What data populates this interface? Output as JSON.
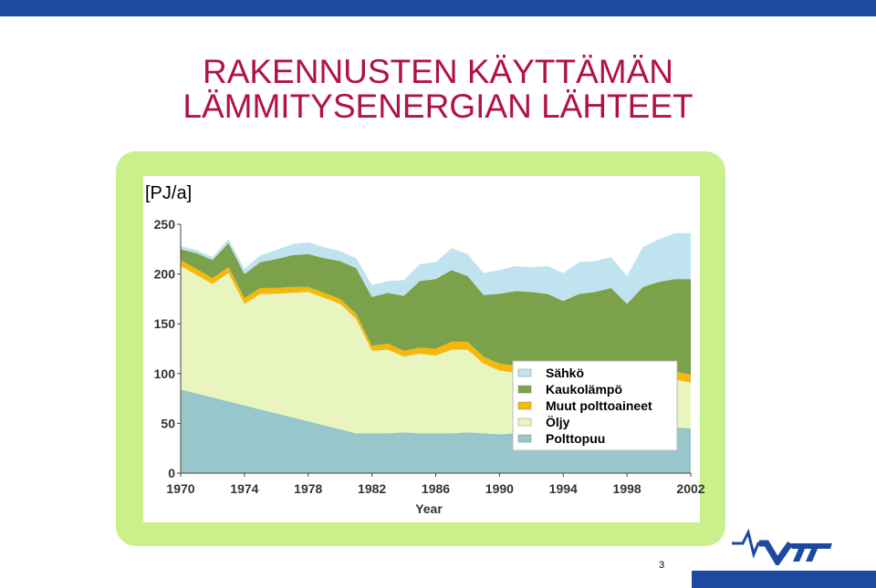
{
  "slide": {
    "title_lines": [
      "RAKENNUSTEN KÄYTTÄMÄN",
      "LÄMMITYSENERGIAN LÄHTEET"
    ],
    "unit": "[PJ/a]",
    "page_number": "3",
    "colors": {
      "title": "#b01248",
      "bar": "#1d4aa0",
      "frame": "#c9f08a",
      "logo": "#1d4aa0"
    },
    "logo_icon": "vtt-logo-icon"
  },
  "chart_data": {
    "type": "area",
    "stacked": true,
    "title": "",
    "xlabel": "Year",
    "ylabel": "",
    "xlim": [
      1970,
      2002
    ],
    "ylim": [
      0,
      250
    ],
    "x_ticks": [
      1970,
      1974,
      1978,
      1982,
      1986,
      1990,
      1994,
      1998,
      2002
    ],
    "y_ticks": [
      0,
      50,
      100,
      150,
      200,
      250
    ],
    "legend_position": "lower-right",
    "grid": false,
    "x": [
      1970,
      1971,
      1972,
      1973,
      1974,
      1975,
      1976,
      1977,
      1978,
      1979,
      1980,
      1981,
      1982,
      1983,
      1984,
      1985,
      1986,
      1987,
      1988,
      1989,
      1990,
      1991,
      1992,
      1993,
      1994,
      1995,
      1996,
      1997,
      1998,
      1999,
      2000,
      2001,
      2002
    ],
    "series": [
      {
        "name": "Polttopuu",
        "color": "#97c7cb",
        "values": [
          84,
          80,
          76,
          72,
          68,
          64,
          60,
          56,
          52,
          48,
          44,
          40,
          40,
          40,
          41,
          40,
          40,
          40,
          41,
          40,
          39,
          40,
          41,
          42,
          42,
          43,
          44,
          45,
          45,
          45,
          46,
          46,
          45
        ]
      },
      {
        "name": "Öljy",
        "color": "#e9f5be",
        "values": [
          124,
          119,
          114,
          129,
          102,
          116,
          120,
          125,
          130,
          128,
          126,
          115,
          83,
          84,
          76,
          80,
          78,
          84,
          83,
          70,
          64,
          61,
          57,
          56,
          55,
          52,
          50,
          49,
          47,
          47,
          48,
          48,
          46
        ]
      },
      {
        "name": "Muut polttoaineet",
        "color": "#f5b80e",
        "values": [
          6,
          6,
          6,
          6,
          6,
          6,
          6,
          6,
          5,
          5,
          5,
          5,
          5,
          6,
          6,
          6,
          7,
          8,
          8,
          7,
          7,
          7,
          8,
          8,
          8,
          8,
          8,
          8,
          8,
          8,
          8,
          8,
          8
        ]
      },
      {
        "name": "Kaukolämpö",
        "color": "#7ba24b",
        "values": [
          11,
          16,
          18,
          24,
          24,
          26,
          29,
          32,
          33,
          35,
          38,
          46,
          49,
          51,
          55,
          67,
          70,
          72,
          66,
          62,
          70,
          75,
          76,
          74,
          68,
          77,
          80,
          84,
          70,
          87,
          90,
          93,
          96
        ]
      },
      {
        "name": "Sähkö",
        "color": "#bfe4ef",
        "values": [
          3,
          3,
          3,
          4,
          5,
          7,
          9,
          11,
          12,
          11,
          10,
          10,
          12,
          12,
          16,
          17,
          17,
          22,
          22,
          22,
          24,
          25,
          25,
          28,
          28,
          32,
          31,
          31,
          28,
          40,
          43,
          46,
          46
        ]
      }
    ]
  }
}
